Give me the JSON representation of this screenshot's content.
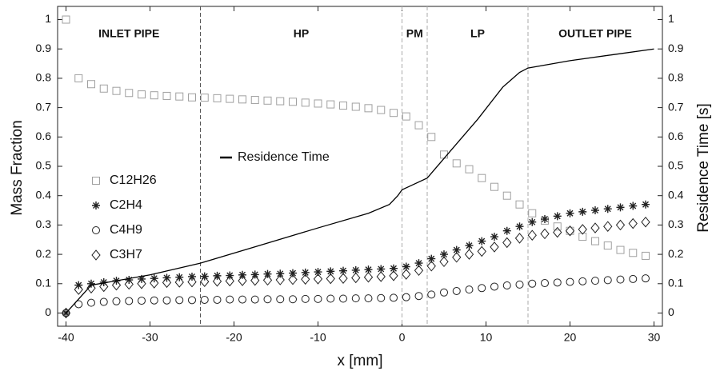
{
  "chart_data": {
    "type": "scatter",
    "xlabel": "x [mm]",
    "ylabel": "Mass Fraction",
    "y2label": "Residence Time [s]",
    "xlim": [
      -41,
      31
    ],
    "xticks": [
      -40,
      -30,
      -20,
      -10,
      0,
      10,
      20,
      30
    ],
    "ylim": [
      -0.045,
      1.045
    ],
    "yticks": [
      0,
      0.1,
      0.2,
      0.3,
      0.4,
      0.5,
      0.6,
      0.7,
      0.8,
      0.9,
      1
    ],
    "y2lim": [
      -0.045,
      1.045
    ],
    "y2ticks": [
      0,
      0.1,
      0.2,
      0.3,
      0.4,
      0.5,
      0.6,
      0.7,
      0.8,
      0.9,
      1
    ],
    "region_bounds": [
      -24,
      0,
      3,
      15
    ],
    "region_labels": [
      "INLET PIPE",
      "HP",
      "PM",
      "LP",
      "OUTLET PIPE"
    ],
    "x": [
      -40,
      -38.5,
      -37,
      -35.5,
      -34,
      -32.5,
      -31,
      -29.5,
      -28,
      -26.5,
      -25,
      -23.5,
      -22,
      -20.5,
      -19,
      -17.5,
      -16,
      -14.5,
      -13,
      -11.5,
      -10,
      -8.5,
      -7,
      -5.5,
      -4,
      -2.5,
      -1,
      0.5,
      2,
      3.5,
      5,
      6.5,
      8,
      9.5,
      11,
      12.5,
      14,
      15.5,
      17,
      18.5,
      20,
      21.5,
      23,
      24.5,
      26,
      27.5,
      29
    ],
    "series": [
      {
        "name": "C12H26",
        "color": "#a0a0a0",
        "marker": "square",
        "values": [
          1.0,
          0.8,
          0.78,
          0.765,
          0.757,
          0.75,
          0.745,
          0.742,
          0.74,
          0.738,
          0.735,
          0.734,
          0.732,
          0.73,
          0.728,
          0.726,
          0.724,
          0.722,
          0.72,
          0.717,
          0.714,
          0.711,
          0.707,
          0.703,
          0.698,
          0.692,
          0.682,
          0.67,
          0.64,
          0.6,
          0.54,
          0.51,
          0.49,
          0.46,
          0.43,
          0.4,
          0.37,
          0.34,
          0.315,
          0.295,
          0.28,
          0.26,
          0.245,
          0.23,
          0.215,
          0.205,
          0.195
        ]
      },
      {
        "name": "C2H4",
        "color": "#222222",
        "marker": "asterisk",
        "values": [
          0,
          0.095,
          0.1,
          0.105,
          0.11,
          0.113,
          0.116,
          0.118,
          0.12,
          0.122,
          0.124,
          0.125,
          0.127,
          0.128,
          0.13,
          0.131,
          0.133,
          0.134,
          0.136,
          0.138,
          0.14,
          0.142,
          0.144,
          0.146,
          0.148,
          0.15,
          0.152,
          0.158,
          0.17,
          0.185,
          0.2,
          0.215,
          0.23,
          0.245,
          0.26,
          0.28,
          0.295,
          0.31,
          0.32,
          0.33,
          0.34,
          0.345,
          0.35,
          0.355,
          0.36,
          0.365,
          0.37
        ]
      },
      {
        "name": "C4H9",
        "color": "#222222",
        "marker": "circle",
        "values": [
          0,
          0.03,
          0.035,
          0.038,
          0.04,
          0.041,
          0.042,
          0.043,
          0.043,
          0.044,
          0.044,
          0.045,
          0.045,
          0.046,
          0.046,
          0.046,
          0.047,
          0.047,
          0.047,
          0.048,
          0.048,
          0.049,
          0.049,
          0.05,
          0.05,
          0.051,
          0.052,
          0.054,
          0.058,
          0.063,
          0.07,
          0.075,
          0.08,
          0.085,
          0.09,
          0.094,
          0.097,
          0.1,
          0.102,
          0.104,
          0.106,
          0.108,
          0.11,
          0.112,
          0.114,
          0.116,
          0.118
        ]
      },
      {
        "name": "C3H7",
        "color": "#222222",
        "marker": "diamond",
        "values": [
          0,
          0.08,
          0.085,
          0.09,
          0.095,
          0.098,
          0.1,
          0.102,
          0.104,
          0.105,
          0.106,
          0.107,
          0.108,
          0.109,
          0.11,
          0.111,
          0.112,
          0.113,
          0.114,
          0.115,
          0.116,
          0.117,
          0.118,
          0.12,
          0.122,
          0.124,
          0.127,
          0.132,
          0.145,
          0.16,
          0.175,
          0.19,
          0.2,
          0.21,
          0.225,
          0.24,
          0.255,
          0.265,
          0.27,
          0.275,
          0.28,
          0.285,
          0.29,
          0.295,
          0.3,
          0.305,
          0.31
        ]
      },
      {
        "name": "Residence Time",
        "color": "#000000",
        "marker": "line",
        "axis": "y2",
        "x": [
          -40,
          -37,
          -30,
          -24,
          -17,
          -10,
          -4,
          -1.5,
          -0.5,
          0,
          3,
          6,
          9,
          12,
          14,
          15,
          20,
          25,
          30
        ],
        "values": [
          0,
          0.095,
          0.13,
          0.17,
          0.23,
          0.29,
          0.34,
          0.37,
          0.4,
          0.42,
          0.46,
          0.56,
          0.66,
          0.77,
          0.82,
          0.835,
          0.86,
          0.88,
          0.9
        ]
      }
    ]
  }
}
